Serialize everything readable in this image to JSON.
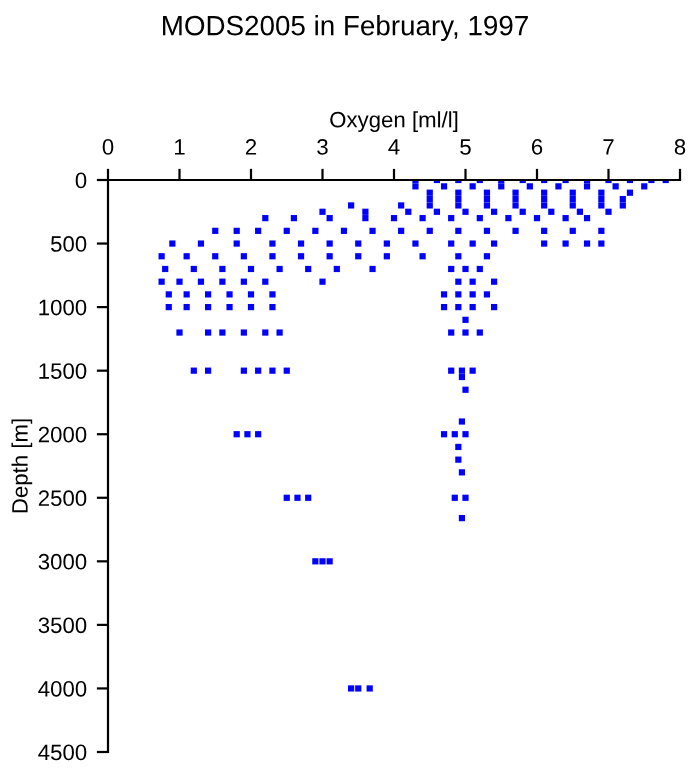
{
  "chart_data": {
    "type": "scatter",
    "title": "MODS2005 in February, 1997",
    "xlabel": "Oxygen [ml/l]",
    "ylabel": "Depth [m]",
    "xlim": [
      0,
      8
    ],
    "xticks": [
      0,
      1,
      2,
      3,
      4,
      5,
      6,
      7,
      8
    ],
    "ylim": [
      4500,
      0
    ],
    "yticks": [
      0,
      500,
      1000,
      1500,
      2000,
      2500,
      3000,
      3500,
      4000,
      4500
    ],
    "grid": false,
    "marker": "square",
    "color": "#0000ff",
    "x": [
      4.3,
      4.6,
      4.9,
      5.2,
      5.5,
      5.8,
      6.1,
      6.4,
      6.7,
      7.0,
      7.3,
      7.6,
      7.8,
      4.3,
      4.7,
      5.1,
      5.5,
      5.9,
      6.3,
      6.7,
      7.1,
      7.5,
      4.5,
      4.9,
      5.3,
      5.7,
      6.1,
      6.5,
      6.9,
      7.3,
      4.5,
      4.9,
      5.3,
      5.7,
      6.1,
      6.5,
      6.9,
      7.2,
      3.4,
      4.1,
      4.5,
      4.9,
      5.3,
      5.7,
      6.1,
      6.5,
      6.9,
      7.2,
      3.0,
      3.6,
      4.2,
      4.6,
      5.0,
      5.4,
      5.8,
      6.2,
      6.6,
      7.0,
      2.2,
      2.6,
      3.1,
      3.6,
      4.0,
      4.4,
      4.8,
      5.2,
      5.6,
      6.0,
      6.4,
      6.7,
      1.5,
      1.8,
      2.1,
      2.5,
      2.9,
      3.3,
      3.7,
      4.1,
      4.5,
      4.9,
      5.3,
      5.7,
      6.1,
      6.5,
      6.9,
      0.9,
      1.3,
      1.8,
      2.3,
      2.7,
      3.1,
      3.5,
      3.9,
      4.3,
      4.8,
      5.1,
      5.4,
      6.1,
      6.4,
      6.7,
      6.9,
      0.75,
      1.1,
      1.5,
      1.9,
      2.3,
      2.7,
      3.1,
      3.5,
      3.9,
      4.4,
      4.9,
      5.3,
      0.8,
      1.2,
      1.6,
      2.0,
      2.4,
      2.8,
      3.2,
      3.7,
      4.8,
      5.0,
      5.2,
      0.75,
      1.0,
      1.3,
      1.6,
      1.9,
      2.2,
      3.0,
      4.9,
      5.1,
      5.4,
      0.85,
      1.1,
      1.4,
      1.7,
      2.0,
      2.3,
      4.7,
      4.9,
      5.1,
      5.3,
      0.85,
      1.1,
      1.4,
      1.7,
      2.0,
      2.3,
      4.7,
      4.9,
      5.1,
      5.4,
      5.0,
      1.0,
      1.4,
      1.6,
      1.9,
      2.2,
      2.4,
      4.8,
      5.0,
      5.2,
      1.2,
      1.4,
      1.9,
      2.1,
      2.3,
      2.5,
      4.8,
      4.95,
      5.1,
      4.95,
      5.0,
      4.95,
      1.8,
      1.95,
      2.1,
      4.7,
      4.85,
      5.0,
      4.9,
      4.9,
      4.95,
      2.5,
      2.65,
      2.8,
      4.85,
      5.0,
      4.95,
      2.9,
      3.0,
      3.1,
      3.4,
      3.5,
      3.66
    ],
    "values": [
      0,
      0,
      0,
      0,
      0,
      0,
      0,
      0,
      0,
      0,
      0,
      0,
      0,
      50,
      50,
      50,
      50,
      50,
      50,
      50,
      50,
      50,
      100,
      100,
      100,
      100,
      100,
      100,
      100,
      100,
      150,
      150,
      150,
      150,
      150,
      150,
      150,
      150,
      200,
      200,
      200,
      200,
      200,
      200,
      200,
      200,
      200,
      200,
      250,
      250,
      250,
      250,
      250,
      250,
      250,
      250,
      250,
      250,
      300,
      300,
      300,
      300,
      300,
      300,
      300,
      300,
      300,
      300,
      300,
      300,
      400,
      400,
      400,
      400,
      400,
      400,
      400,
      400,
      400,
      400,
      400,
      400,
      400,
      400,
      400,
      500,
      500,
      500,
      500,
      500,
      500,
      500,
      500,
      500,
      500,
      500,
      500,
      500,
      500,
      500,
      500,
      600,
      600,
      600,
      600,
      600,
      600,
      600,
      600,
      600,
      600,
      600,
      600,
      700,
      700,
      700,
      700,
      700,
      700,
      700,
      700,
      700,
      700,
      700,
      800,
      800,
      800,
      800,
      800,
      800,
      800,
      800,
      800,
      800,
      900,
      900,
      900,
      900,
      900,
      900,
      900,
      900,
      900,
      900,
      1000,
      1000,
      1000,
      1000,
      1000,
      1000,
      1000,
      1000,
      1000,
      1000,
      1100,
      1200,
      1200,
      1200,
      1200,
      1200,
      1200,
      1200,
      1200,
      1200,
      1500,
      1500,
      1500,
      1500,
      1500,
      1500,
      1500,
      1500,
      1500,
      1550,
      1650,
      1900,
      2000,
      2000,
      2000,
      2000,
      2000,
      2000,
      2100,
      2200,
      2300,
      2500,
      2500,
      2500,
      2500,
      2500,
      2660,
      3000,
      3000,
      3000,
      4000,
      4000,
      4000
    ]
  }
}
